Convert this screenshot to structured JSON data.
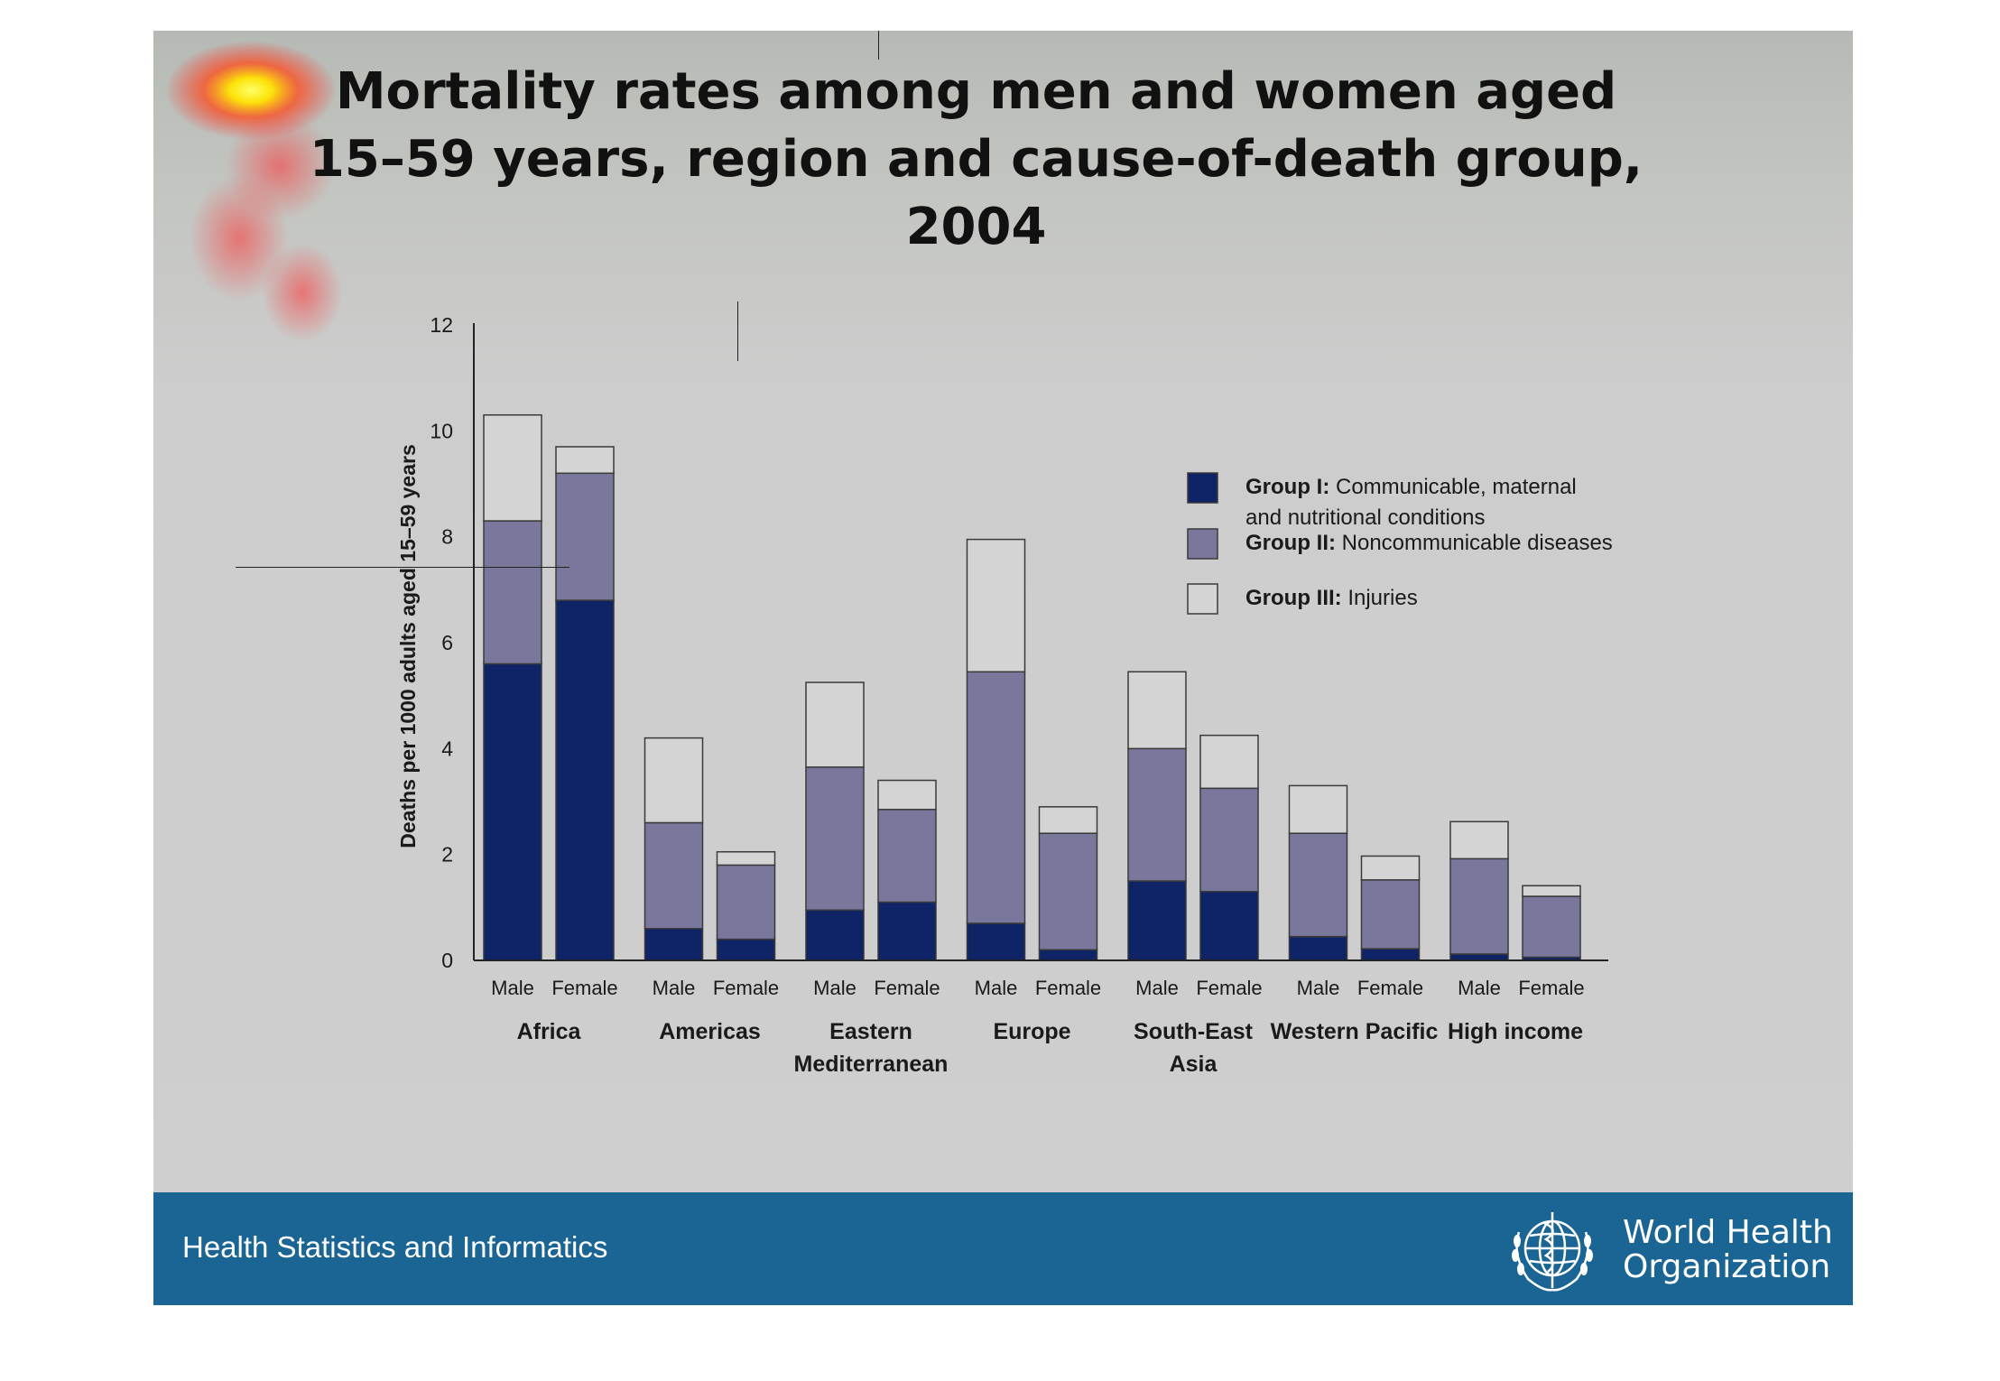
{
  "slide": {
    "title": "Mortality rates among men and women aged\n15–59 years, region and cause-of-death group,\n2004"
  },
  "footer": {
    "left_text": "Health Statistics and Informatics",
    "org_line1": "World Health",
    "org_line2": "Organization",
    "logo_icon": "who-emblem-icon"
  },
  "colors": {
    "group1": "#0e2466",
    "group2": "#79789c",
    "group3": "#d4d4d4",
    "footer_bg": "#1a6594"
  },
  "chart_data": {
    "type": "bar",
    "stacked": true,
    "ylabel": "Deaths per 1000 adults aged 15–59 years",
    "ylim": [
      0,
      12
    ],
    "yticks": [
      0,
      2,
      4,
      6,
      8,
      10,
      12
    ],
    "regions": [
      "Africa",
      "Americas",
      "Eastern Mediterranean",
      "Europe",
      "South-East Asia",
      "Western Pacific",
      "High income"
    ],
    "region_labels": [
      [
        "Africa"
      ],
      [
        "Americas"
      ],
      [
        "Eastern",
        "Mediterranean"
      ],
      [
        "Europe"
      ],
      [
        "South-East",
        "Asia"
      ],
      [
        "Western Pacific"
      ],
      [
        "High income"
      ]
    ],
    "sexes": [
      "Male",
      "Female"
    ],
    "legend_position": "top-right",
    "series": [
      {
        "name": "Group I: Communicable, maternal and nutritional conditions",
        "legend_bold": "Group I:",
        "legend_rest": [
          "Communicable, maternal",
          "and nutritional conditions"
        ],
        "values": [
          5.6,
          6.8,
          0.6,
          0.4,
          0.95,
          1.1,
          0.7,
          0.2,
          1.5,
          1.3,
          0.45,
          0.22,
          0.12,
          0.06
        ]
      },
      {
        "name": "Group II: Noncommunicable diseases",
        "legend_bold": "Group II:",
        "legend_rest": [
          "Noncommunicable diseases"
        ],
        "values": [
          2.7,
          2.4,
          2.0,
          1.4,
          2.7,
          1.75,
          4.75,
          2.2,
          2.5,
          1.95,
          1.95,
          1.3,
          1.8,
          1.15
        ]
      },
      {
        "name": "Group III: Injuries",
        "legend_bold": "Group III:",
        "legend_rest": [
          "Injuries"
        ],
        "values": [
          2.0,
          0.5,
          1.6,
          0.25,
          1.6,
          0.55,
          2.5,
          0.5,
          1.45,
          1.0,
          0.9,
          0.45,
          0.7,
          0.2
        ]
      }
    ]
  }
}
